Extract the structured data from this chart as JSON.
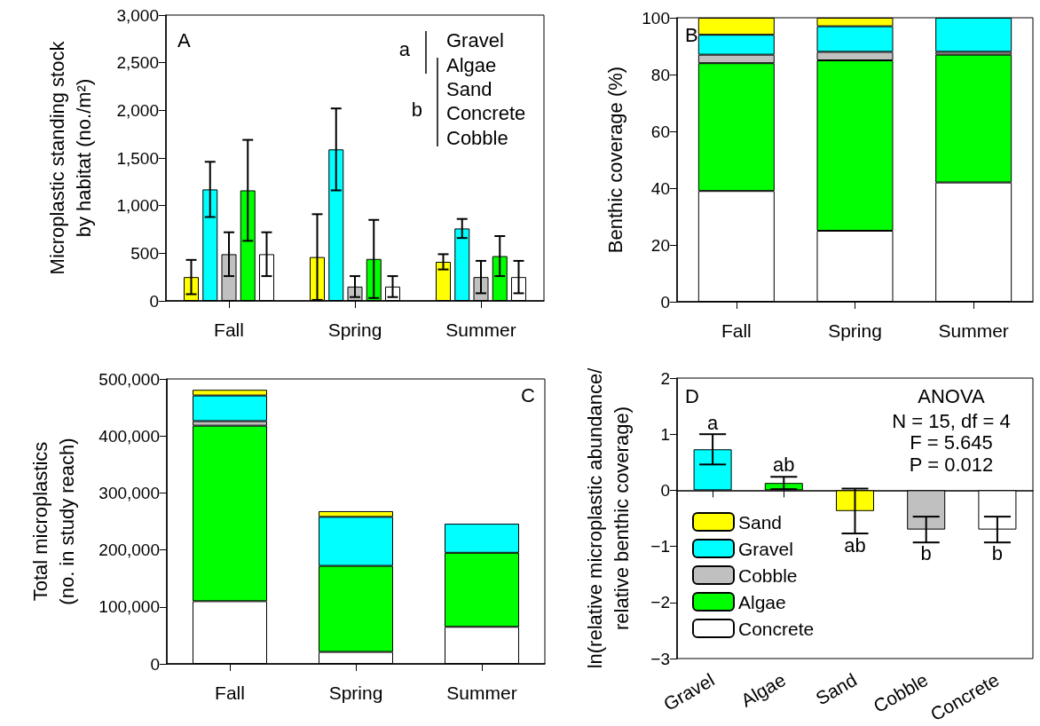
{
  "chart_data": [
    {
      "type": "bar",
      "categories": [
        "Fall",
        "Spring",
        "Summer"
      ],
      "ylabel": "Microplastic standing stock\nby habitat (no./m²)",
      "ylim": [
        0,
        3000
      ],
      "yticks": [
        0,
        500,
        {
          "value": 1000,
          "label": "1,000"
        },
        {
          "value": 1500,
          "label": "1,500"
        },
        {
          "value": 2000,
          "label": "2,000"
        },
        {
          "value": 2500,
          "label": "2,500"
        },
        {
          "value": 3000,
          "label": "3,000"
        }
      ],
      "annotations": [
        "A",
        "a",
        "b",
        "Gravel",
        "Algae",
        "Sand",
        "Concrete",
        "Cobble"
      ],
      "series": [
        {
          "color": "#ffff00",
          "values": [
            250,
            460,
            410
          ],
          "errors": [
            180,
            450,
            80
          ]
        },
        {
          "color": "#00ffff",
          "values": [
            1170,
            1590,
            760
          ],
          "errors": [
            290,
            430,
            100
          ]
        },
        {
          "color": "#c0c0c0",
          "values": [
            490,
            150,
            250
          ],
          "errors": [
            230,
            110,
            170
          ]
        },
        {
          "color": "#00ff00",
          "values": [
            1160,
            440,
            470
          ],
          "errors": [
            530,
            410,
            210
          ]
        },
        {
          "color": "#ffffff",
          "values": [
            490,
            150,
            250
          ],
          "errors": [
            230,
            110,
            170
          ]
        }
      ]
    },
    {
      "type": "bar",
      "stacked": true,
      "categories": [
        "Fall",
        "Spring",
        "Summer"
      ],
      "ylabel": "Benthic coverage (%)",
      "ylim": [
        0,
        100
      ],
      "yticks": [
        0,
        20,
        40,
        60,
        80,
        100
      ],
      "annotations": [
        "B"
      ],
      "series": [
        {
          "color": "#ffffff",
          "values": [
            39,
            25,
            42
          ]
        },
        {
          "color": "#00ff00",
          "values": [
            45,
            60,
            45
          ]
        },
        {
          "color": "#c0c0c0",
          "values": [
            3,
            3,
            1
          ]
        },
        {
          "color": "#00ffff",
          "values": [
            7,
            9,
            12
          ]
        },
        {
          "color": "#ffff00",
          "values": [
            6,
            3,
            0
          ]
        }
      ]
    },
    {
      "type": "bar",
      "stacked": true,
      "categories": [
        "Fall",
        "Spring",
        "Summer"
      ],
      "ylabel": "Total microplastics\n(no. in study reach)",
      "ylim": [
        0,
        500000
      ],
      "yticks": [
        0,
        {
          "value": 100000,
          "label": "100,000"
        },
        {
          "value": 200000,
          "label": "200,000"
        },
        {
          "value": 300000,
          "label": "300,000"
        },
        {
          "value": 400000,
          "label": "400,000"
        },
        {
          "value": 500000,
          "label": "500,000"
        }
      ],
      "annotations": [
        "C"
      ],
      "series": [
        {
          "color": "#ffffff",
          "values": [
            110000,
            21000,
            65000
          ]
        },
        {
          "color": "#00ff00",
          "values": [
            308000,
            151000,
            130000
          ]
        },
        {
          "color": "#c0c0c0",
          "values": [
            8000,
            null,
            null
          ]
        },
        {
          "color": "#00ffff",
          "values": [
            45000,
            86000,
            51000
          ]
        },
        {
          "color": "#ffff00",
          "values": [
            10000,
            10000,
            0
          ]
        }
      ]
    },
    {
      "type": "bar",
      "categories": [
        "Gravel",
        "Algae",
        "Sand",
        "Cobble",
        "Concrete"
      ],
      "ylabel": "ln(relative microplastic abundance/\nrelative benthic coverage)",
      "ylim": [
        -3,
        2
      ],
      "yticks": [
        {
          "value": -3,
          "label": "−3"
        },
        {
          "value": -2,
          "label": "−2"
        },
        {
          "value": -1,
          "label": "−1"
        },
        0,
        1,
        2
      ],
      "legend": "bottom left",
      "annotations": [
        "D",
        "ANOVA",
        "N = 15, df = 4",
        "F = 5.645",
        "P = 0.012",
        "a",
        "ab",
        "ab",
        "b",
        "b"
      ],
      "series": [
        {
          "name": "Sand",
          "color": "#ffff00",
          "values": [
            null,
            null,
            -0.37,
            null,
            null
          ],
          "errors": [
            null,
            null,
            0.4,
            null,
            null
          ]
        },
        {
          "name": "Gravel",
          "color": "#00ffff",
          "values": [
            0.73,
            null,
            null,
            null,
            null
          ],
          "errors": [
            0.27,
            null,
            null,
            null,
            null
          ]
        },
        {
          "name": "Cobble",
          "color": "#c0c0c0",
          "values": [
            null,
            null,
            null,
            -0.7,
            null
          ],
          "errors": [
            null,
            null,
            null,
            0.23,
            null
          ]
        },
        {
          "name": "Algae",
          "color": "#00ff00",
          "values": [
            null,
            0.13,
            null,
            null,
            null
          ],
          "errors": [
            null,
            0.11,
            null,
            null,
            null
          ]
        },
        {
          "name": "Concrete",
          "color": "#ffffff",
          "values": [
            null,
            null,
            null,
            null,
            -0.7
          ],
          "errors": [
            null,
            null,
            null,
            null,
            0.23
          ]
        }
      ]
    }
  ]
}
